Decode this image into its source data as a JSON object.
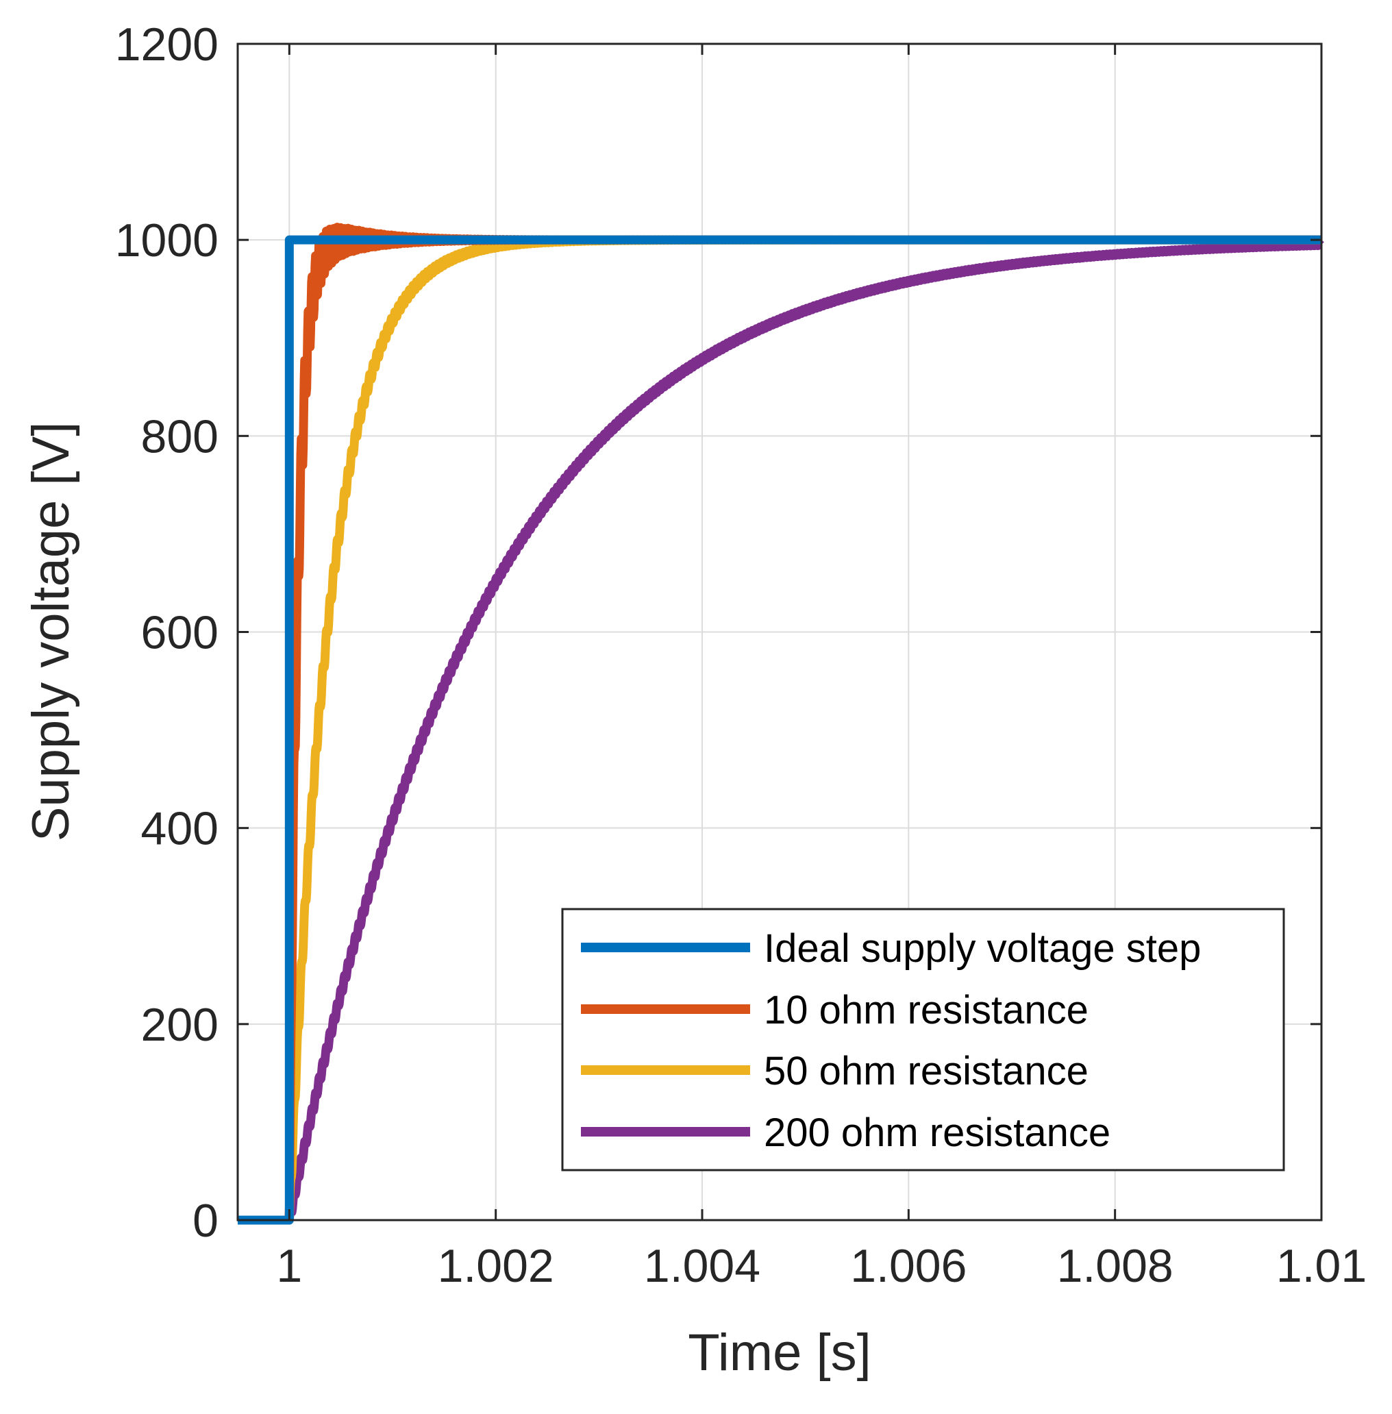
{
  "chart_data": {
    "type": "line",
    "title": "",
    "xlabel": "Time [s]",
    "ylabel": "Supply voltage [V]",
    "xlim": [
      0.9995,
      1.01
    ],
    "ylim": [
      0,
      1200
    ],
    "xticks": [
      1,
      1.002,
      1.004,
      1.006,
      1.008,
      1.01
    ],
    "xtick_labels": [
      "1",
      "1.002",
      "1.004",
      "1.006",
      "1.008",
      "1.01"
    ],
    "yticks": [
      0,
      200,
      400,
      600,
      800,
      1000,
      1200
    ],
    "ytick_labels": [
      "0",
      "200",
      "400",
      "600",
      "800",
      "1000",
      "1200"
    ],
    "grid": true,
    "legend_position": "bottom-right",
    "step_time": 1.0,
    "final_value": 1000,
    "series": [
      {
        "name": "Ideal supply voltage step",
        "color": "#0072BD",
        "model": "step"
      },
      {
        "name": "10 ohm resistance",
        "color": "#D95319",
        "model": "underdamped",
        "time_constant": 8e-05,
        "ripple_amplitude": 45,
        "ripple_decay": 0.00045,
        "ripple_period": 3.5e-05
      },
      {
        "name": "50 ohm resistance",
        "color": "#EDB120",
        "model": "first_order",
        "time_constant": 0.0004,
        "ripple_amplitude": 12,
        "ripple_period": 3.5e-05
      },
      {
        "name": "200 ohm resistance",
        "color": "#7E2F8E",
        "model": "first_order",
        "time_constant": 0.0019,
        "ripple_amplitude": 5,
        "ripple_period": 3.5e-05
      }
    ]
  }
}
